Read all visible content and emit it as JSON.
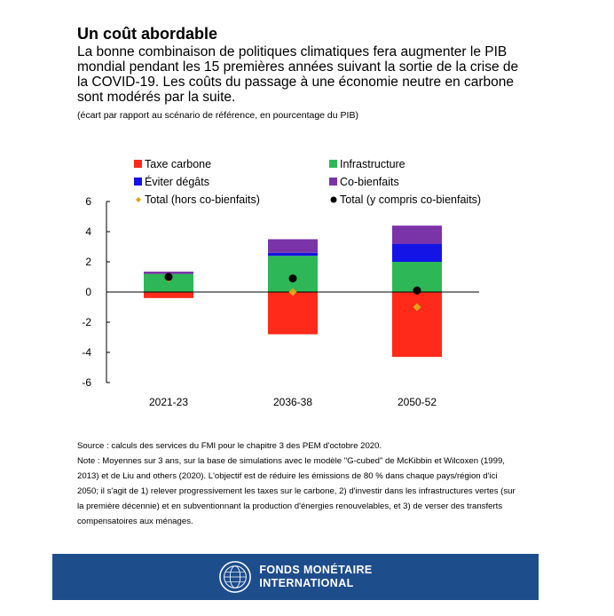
{
  "header": {
    "title": "Un coût abordable",
    "subtitle": "La bonne combinaison de politiques climatiques fera augmenter le PIB mondial pendant les 15 premières années suivant la sortie de la crise de la COVID-19. Les coûts du passage à une économie neutre en carbone sont modérés par la suite.",
    "units": "(écart par rapport au scénario de référence, en pourcentage du PIB)"
  },
  "chart_data": {
    "type": "bar",
    "stacked": true,
    "categories": [
      "2021-23",
      "2036-38",
      "2050-52"
    ],
    "series": [
      {
        "name": "Taxe carbone",
        "color": "#ff2a1a",
        "values": [
          -0.4,
          -2.8,
          -4.3
        ]
      },
      {
        "name": "Infrastructure",
        "color": "#2db757",
        "values": [
          1.2,
          2.4,
          2.0
        ]
      },
      {
        "name": "Éviter dégâts",
        "color": "#1414e6",
        "values": [
          0.0,
          0.2,
          1.2
        ]
      },
      {
        "name": "Co-bienfaits",
        "color": "#7b33a8",
        "values": [
          0.15,
          0.9,
          1.2
        ]
      }
    ],
    "points": [
      {
        "name": "Total (hors co-bienfaits)",
        "color": "#e0a21a",
        "marker": "diamond",
        "values": [
          0.9,
          0.0,
          -1.0
        ]
      },
      {
        "name": "Total (y compris co-bienfaits)",
        "color": "#000000",
        "marker": "circle",
        "values": [
          1.0,
          0.9,
          0.1
        ]
      }
    ],
    "yticks": [
      6,
      4,
      2,
      0,
      -2,
      -4,
      -6
    ],
    "ylim": [
      -6,
      6
    ],
    "legend_position": "top"
  },
  "notes": {
    "source": "Source : calculs des services du FMI pour le chapitre 3 des PEM d'octobre 2020.",
    "note": "Note : Moyennes sur 3 ans, sur la base de simulations avec le modèle \"G-cubed\" de McKibbin et Wilcoxen (1999, 2013) et de Liu and others (2020). L'objectif est de réduire les émissions de 80 % dans chaque pays/région d'ici 2050; il s'agit de 1) relever progressivement les taxes sur le carbone, 2) d'investir dans les infrastructures vertes (sur la première décennie) et en subventionnant la production d'énergies renouvelables, et 3) de verser des transferts compensatoires aux ménages."
  },
  "footer": {
    "org_line1": "FONDS MONÉTAIRE",
    "org_line2": "INTERNATIONAL",
    "logo_icon": "imf-seal-icon"
  }
}
